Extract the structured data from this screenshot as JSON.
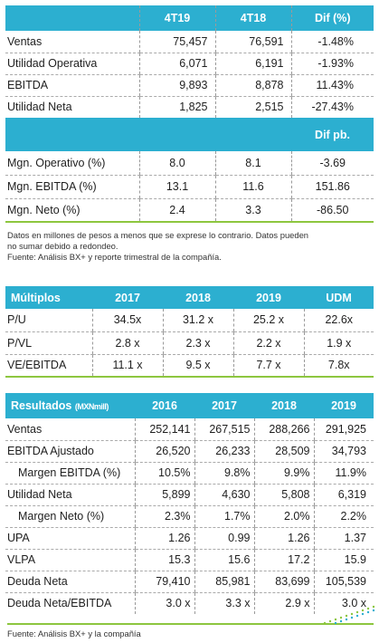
{
  "table1": {
    "headers": [
      "",
      "4T19",
      "4T18",
      "Dif (%)"
    ],
    "rows": [
      [
        "Ventas",
        "75,457",
        "76,591",
        "-1.48%"
      ],
      [
        "Utilidad Operativa",
        "6,071",
        "6,191",
        "-1.93%"
      ],
      [
        "EBITDA",
        "9,893",
        "8,878",
        "11.43%"
      ],
      [
        "Utilidad Neta",
        "1,825",
        "2,515",
        "-27.43%"
      ]
    ],
    "subheader": "Dif pb.",
    "rows2": [
      [
        "Mgn. Operativo (%)",
        "8.0",
        "8.1",
        "-3.69"
      ],
      [
        "Mgn. EBITDA (%)",
        "13.1",
        "11.6",
        "151.86"
      ],
      [
        "Mgn. Neto (%)",
        "2.4",
        "3.3",
        "-86.50"
      ]
    ],
    "note_line1": "Datos en millones de pesos a menos que se exprese lo contrario. Datos pueden",
    "note_line2": "no sumar debido a redondeo.",
    "note_line3": "Fuente: Análisis BX+ y reporte trimestral de la compañía."
  },
  "table2": {
    "headers": [
      "Múltiplos",
      "2017",
      "2018",
      "2019",
      "UDM"
    ],
    "rows": [
      [
        "P/U",
        "34.5x",
        "31.2 x",
        "25.2 x",
        "22.6x"
      ],
      [
        "P/VL",
        "2.8 x",
        "2.3 x",
        "2.2 x",
        "1.9 x"
      ],
      [
        "VE/EBITDA",
        "11.1 x",
        "9.5 x",
        "7.7 x",
        "7.8x"
      ]
    ]
  },
  "table3": {
    "title": "Resultados",
    "title_unit": "(MXNmill)",
    "headers": [
      "2016",
      "2017",
      "2018",
      "2019"
    ],
    "rows": [
      [
        "Ventas",
        "252,141",
        "267,515",
        "288,266",
        "291,925"
      ],
      [
        "EBITDA Ajustado",
        "26,520",
        "26,233",
        "28,509",
        "34,793"
      ],
      [
        "Margen EBITDA (%)",
        "10.5%",
        "9.8%",
        "9.9%",
        "11.9%"
      ],
      [
        "Utilidad Neta",
        "5,899",
        "4,630",
        "5,808",
        "6,319"
      ],
      [
        "Margen Neto (%)",
        "2.3%",
        "1.7%",
        "2.0%",
        "2.2%"
      ],
      [
        "UPA",
        "1.26",
        "0.99",
        "1.26",
        "1.37"
      ],
      [
        "VLPA",
        "15.3",
        "15.6",
        "17.2",
        "15.9"
      ],
      [
        "Deuda Neta",
        "79,410",
        "85,981",
        "83,699",
        "105,539"
      ],
      [
        "Deuda Neta/EBITDA",
        "3.0 x",
        "3.3 x",
        "2.9 x",
        "3.0 x"
      ]
    ],
    "source": "Fuente: Análisis BX+ y la compañía"
  },
  "colors": {
    "header": "#2cafd0",
    "rule": "#8dc63f"
  }
}
